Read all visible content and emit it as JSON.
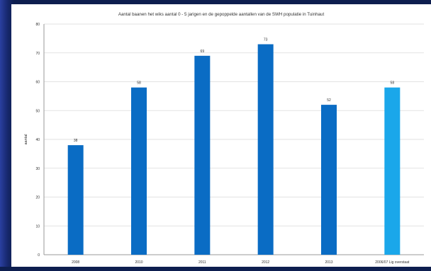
{
  "colors": {
    "frame": "#0d1e4f",
    "panel": "#ffffff",
    "bar_primary": "#0a6cc4",
    "bar_highlight": "#1aa7ea",
    "grid": "#d9d9d9",
    "axis": "#9a9a9a",
    "text": "#333333"
  },
  "chart_data": {
    "type": "bar",
    "title": "Aantal baanen het wiks aantal 0 - 5 jarigen en de gepoppelde aantallen van de SWH populatie in Tuinhaut",
    "xlabel": "",
    "ylabel": "aantal",
    "ylim": [
      0,
      80
    ],
    "yticks": [
      0,
      10,
      20,
      30,
      40,
      50,
      60,
      70,
      80
    ],
    "grid": true,
    "categories": [
      "2008",
      "2010",
      "2011",
      "2012",
      "2013",
      "2006/07 Lig overstaat"
    ],
    "values": [
      38,
      58,
      69,
      73,
      52,
      58
    ],
    "data_labels": [
      "38",
      "58",
      "69",
      "73",
      "52",
      "58"
    ],
    "highlight_index": 5
  }
}
